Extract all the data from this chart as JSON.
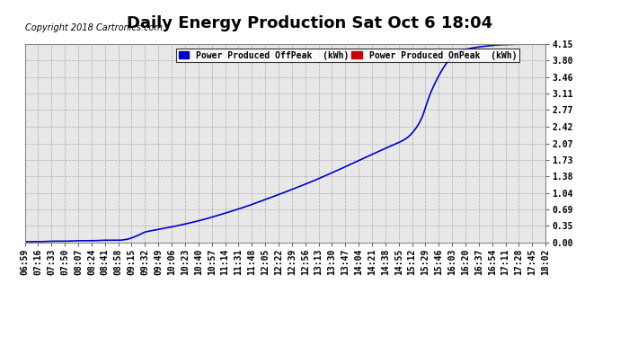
{
  "title": "Daily Energy Production Sat Oct 6 18:04",
  "copyright": "Copyright 2018 Cartronics.com",
  "legend_offpeak": "Power Produced OffPeak  (kWh)",
  "legend_onpeak": "Power Produced OnPeak  (kWh)",
  "offpeak_color": "#0000cc",
  "onpeak_color": "#cc0000",
  "line_color": "#0000cc",
  "bg_color": "#ffffff",
  "plot_bg_color": "#e8e8e8",
  "grid_color": "#999999",
  "yticks": [
    0.0,
    0.35,
    0.69,
    1.04,
    1.38,
    1.73,
    2.07,
    2.42,
    2.77,
    3.11,
    3.46,
    3.8,
    4.15
  ],
  "ylim": [
    0.0,
    4.15
  ],
  "xtick_labels": [
    "06:59",
    "07:16",
    "07:33",
    "07:50",
    "08:07",
    "08:24",
    "08:41",
    "08:58",
    "09:15",
    "09:32",
    "09:49",
    "10:06",
    "10:23",
    "10:40",
    "10:57",
    "11:14",
    "11:31",
    "11:48",
    "12:05",
    "12:22",
    "12:39",
    "12:56",
    "13:13",
    "13:30",
    "13:47",
    "14:04",
    "14:21",
    "14:38",
    "14:55",
    "15:12",
    "15:29",
    "15:46",
    "16:03",
    "16:20",
    "16:37",
    "16:54",
    "17:11",
    "17:28",
    "17:45",
    "18:02"
  ],
  "title_fontsize": 13,
  "copyright_fontsize": 7,
  "axis_fontsize": 7,
  "legend_fontsize": 7,
  "curve_x": [
    0.0,
    0.28,
    0.56,
    0.84,
    1.12,
    1.4,
    1.68,
    1.98,
    2.17,
    2.27,
    2.42,
    2.55,
    2.75,
    2.9,
    3.12,
    3.45,
    3.78,
    4.1,
    4.43,
    4.77,
    5.1,
    5.43,
    5.77,
    6.1,
    6.43,
    6.77,
    7.1,
    7.43,
    7.77,
    8.1,
    8.27,
    8.43,
    8.52,
    8.6,
    8.75,
    8.93,
    9.1,
    9.43,
    9.77,
    10.1,
    11.05
  ],
  "curve_y": [
    0.02,
    0.02,
    0.03,
    0.03,
    0.04,
    0.04,
    0.05,
    0.05,
    0.07,
    0.1,
    0.16,
    0.22,
    0.26,
    0.29,
    0.33,
    0.4,
    0.48,
    0.57,
    0.67,
    0.78,
    0.9,
    1.02,
    1.15,
    1.28,
    1.42,
    1.57,
    1.72,
    1.87,
    2.02,
    2.18,
    2.35,
    2.62,
    2.88,
    3.1,
    3.42,
    3.72,
    3.92,
    4.05,
    4.1,
    4.13,
    4.15
  ]
}
